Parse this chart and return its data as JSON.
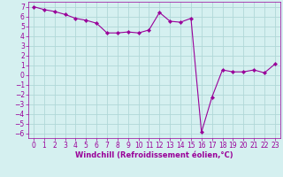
{
  "x": [
    0,
    1,
    2,
    3,
    4,
    5,
    6,
    7,
    8,
    9,
    10,
    11,
    12,
    13,
    14,
    15,
    16,
    17,
    18,
    19,
    20,
    21,
    22,
    23
  ],
  "y": [
    7.0,
    6.7,
    6.5,
    6.2,
    5.8,
    5.6,
    5.3,
    4.3,
    4.3,
    4.4,
    4.3,
    4.6,
    6.4,
    5.5,
    5.4,
    5.8,
    -5.9,
    -2.3,
    0.5,
    0.3,
    0.3,
    0.5,
    0.2,
    1.1
  ],
  "line_color": "#990099",
  "marker": "D",
  "marker_size": 2.2,
  "bg_color": "#d5f0f0",
  "grid_color": "#b0d8d8",
  "xlabel": "Windchill (Refroidissement éolien,°C)",
  "ylabel": "",
  "xlim": [
    -0.5,
    23.5
  ],
  "ylim": [
    -6.5,
    7.5
  ],
  "yticks": [
    7,
    6,
    5,
    4,
    3,
    2,
    1,
    0,
    -1,
    -2,
    -3,
    -4,
    -5,
    -6
  ],
  "xticks": [
    0,
    1,
    2,
    3,
    4,
    5,
    6,
    7,
    8,
    9,
    10,
    11,
    12,
    13,
    14,
    15,
    16,
    17,
    18,
    19,
    20,
    21,
    22,
    23
  ],
  "tick_color": "#990099",
  "label_color": "#990099",
  "tick_fontsize": 5.5,
  "xlabel_fontsize": 6.0
}
